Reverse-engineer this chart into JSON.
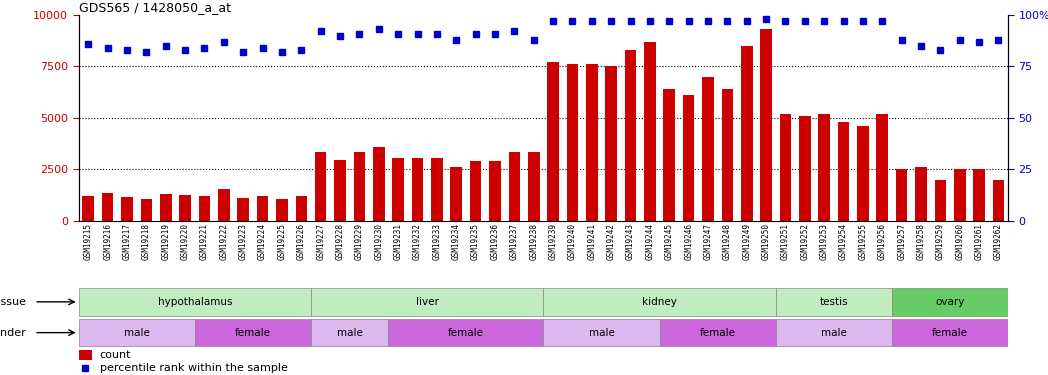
{
  "title": "GDS565 / 1428050_a_at",
  "samples": [
    "GSM19215",
    "GSM19216",
    "GSM19217",
    "GSM19218",
    "GSM19219",
    "GSM19220",
    "GSM19221",
    "GSM19222",
    "GSM19223",
    "GSM19224",
    "GSM19225",
    "GSM19226",
    "GSM19227",
    "GSM19228",
    "GSM19229",
    "GSM19230",
    "GSM19231",
    "GSM19232",
    "GSM19233",
    "GSM19234",
    "GSM19235",
    "GSM19236",
    "GSM19237",
    "GSM19238",
    "GSM19239",
    "GSM19240",
    "GSM19241",
    "GSM19242",
    "GSM19243",
    "GSM19244",
    "GSM19245",
    "GSM19246",
    "GSM19247",
    "GSM19248",
    "GSM19249",
    "GSM19250",
    "GSM19251",
    "GSM19252",
    "GSM19253",
    "GSM19254",
    "GSM19255",
    "GSM19256",
    "GSM19257",
    "GSM19258",
    "GSM19259",
    "GSM19260",
    "GSM19261",
    "GSM19262"
  ],
  "counts": [
    1200,
    1350,
    1150,
    1050,
    1300,
    1250,
    1200,
    1550,
    1100,
    1200,
    1050,
    1200,
    3350,
    2950,
    3350,
    3600,
    3050,
    3050,
    3050,
    2600,
    2900,
    2900,
    3350,
    3350,
    7700,
    7600,
    7600,
    7500,
    8300,
    8700,
    6400,
    6100,
    7000,
    6400,
    8500,
    9300,
    5200,
    5100,
    5200,
    4800,
    4600,
    5200,
    2500,
    2600,
    2000,
    2500,
    2500,
    2000
  ],
  "percentiles": [
    86,
    84,
    83,
    82,
    85,
    83,
    84,
    87,
    82,
    84,
    82,
    83,
    92,
    90,
    91,
    93,
    91,
    91,
    91,
    88,
    91,
    91,
    92,
    88,
    97,
    97,
    97,
    97,
    97,
    97,
    97,
    97,
    97,
    97,
    97,
    98,
    97,
    97,
    97,
    97,
    97,
    97,
    88,
    85,
    83,
    88,
    87,
    88
  ],
  "tissue_groups": [
    {
      "label": "hypothalamus",
      "start": 0,
      "end": 11,
      "color": "#c0ecc0"
    },
    {
      "label": "liver",
      "start": 12,
      "end": 23,
      "color": "#c0ecc0"
    },
    {
      "label": "kidney",
      "start": 24,
      "end": 35,
      "color": "#c0ecc0"
    },
    {
      "label": "testis",
      "start": 36,
      "end": 41,
      "color": "#c0ecc0"
    },
    {
      "label": "ovary",
      "start": 42,
      "end": 47,
      "color": "#66cc66"
    }
  ],
  "gender_groups": [
    {
      "label": "male",
      "start": 0,
      "end": 5,
      "color": "#ddb8ee"
    },
    {
      "label": "female",
      "start": 6,
      "end": 11,
      "color": "#cc66dd"
    },
    {
      "label": "male",
      "start": 12,
      "end": 15,
      "color": "#ddb8ee"
    },
    {
      "label": "female",
      "start": 16,
      "end": 23,
      "color": "#cc66dd"
    },
    {
      "label": "male",
      "start": 24,
      "end": 29,
      "color": "#ddb8ee"
    },
    {
      "label": "female",
      "start": 30,
      "end": 35,
      "color": "#cc66dd"
    },
    {
      "label": "male",
      "start": 36,
      "end": 41,
      "color": "#ddb8ee"
    },
    {
      "label": "female",
      "start": 42,
      "end": 47,
      "color": "#cc66dd"
    }
  ],
  "bar_color": "#cc0000",
  "dot_color": "#0000cc",
  "ylim_left": [
    0,
    10000
  ],
  "ylim_right": [
    0,
    100
  ],
  "yticks_left": [
    0,
    2500,
    5000,
    7500,
    10000
  ],
  "yticks_right": [
    0,
    25,
    50,
    75,
    100
  ],
  "grid_values": [
    2500,
    5000,
    7500
  ],
  "bg_color": "#ffffff",
  "xtick_bg_color": "#d4d4d4"
}
